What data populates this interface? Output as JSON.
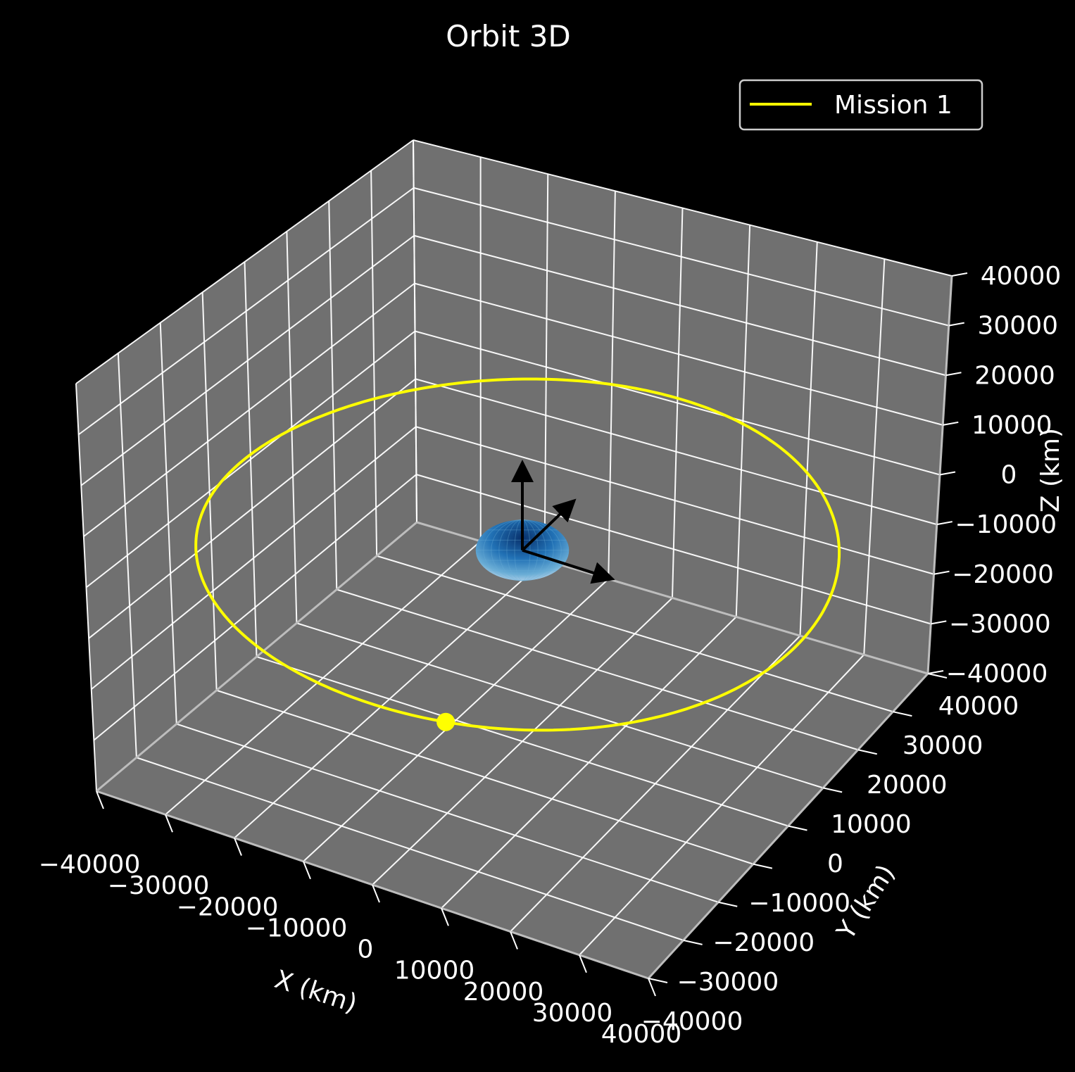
{
  "chart_data": {
    "type": "line",
    "projection": "3d",
    "title": "Orbit 3D",
    "xlabel": "X (km)",
    "ylabel": "Y (km)",
    "zlabel": "Z (km)",
    "xlim": [
      -40000,
      40000
    ],
    "ylim": [
      -40000,
      40000
    ],
    "zlim": [
      -40000,
      40000
    ],
    "x_ticks": [
      "−40000",
      "−30000",
      "−20000",
      "−10000",
      "0",
      "10000",
      "20000",
      "30000",
      "40000"
    ],
    "y_ticks": [
      "−40000",
      "−30000",
      "−20000",
      "−10000",
      "0",
      "10000",
      "20000",
      "30000",
      "40000"
    ],
    "z_ticks": [
      "−40000",
      "−30000",
      "−20000",
      "−10000",
      "0",
      "10000",
      "20000",
      "30000",
      "40000"
    ],
    "grid": true,
    "legend_position": "top-right",
    "series": [
      {
        "name": "Mission 1",
        "color": "#ffff00",
        "shape": "circular orbit",
        "radius_km": 42164,
        "z_km": 0
      }
    ],
    "current_position_km": {
      "x": 11000,
      "y": -40700,
      "z": 0
    },
    "central_body": {
      "name": "earth",
      "radius_km": 6371,
      "colors": [
        "#08306b",
        "#2171b5",
        "#c6dbef"
      ]
    },
    "frame_axes_arrows": 3,
    "colors": {
      "background": "#000000",
      "pane": "#707070",
      "grid": "#ffffff",
      "arrow": "#000000"
    }
  }
}
